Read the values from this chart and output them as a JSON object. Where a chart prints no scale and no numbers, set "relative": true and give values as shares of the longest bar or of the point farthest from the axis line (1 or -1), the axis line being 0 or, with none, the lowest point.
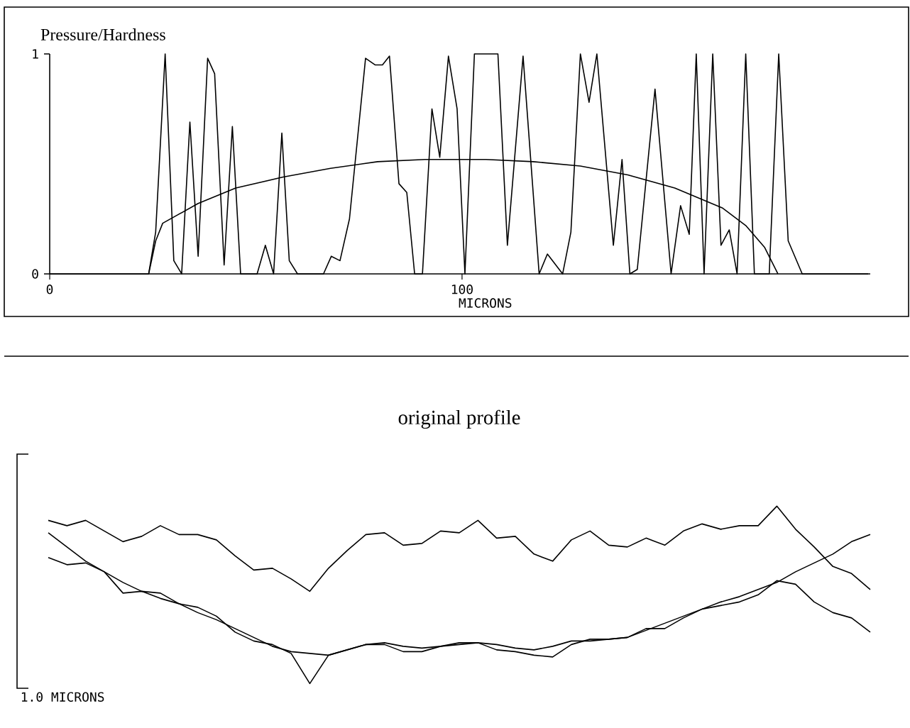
{
  "chart_data": [
    {
      "type": "line",
      "xlabel": "MICRONS",
      "ylabel": "Pressure/Hardness",
      "xlim": [
        0,
        199
      ],
      "xticks": [
        0,
        100
      ],
      "ylim": [
        0,
        1
      ],
      "yticks": [
        0,
        1
      ],
      "series": [
        {
          "color": "#000000",
          "x": [
            0,
            24.0,
            25.7,
            28.0,
            30.1,
            32.0,
            34.0,
            36.0,
            38.3,
            40.0,
            42.3,
            44.3,
            46.3,
            50.3,
            52.3,
            54.3,
            56.3,
            58.1,
            60.1,
            66.4,
            68.3,
            70.4,
            72.7,
            76.6,
            78.9,
            80.7,
            82.4,
            84.7,
            86.6,
            88.5,
            90.4,
            92.7,
            94.6,
            96.7,
            98.8,
            100.7,
            103.0,
            108.7,
            111.0,
            114.8,
            118.7,
            120.7,
            124.4,
            126.4,
            128.7,
            130.8,
            132.7,
            136.7,
            138.8,
            140.7,
            142.5,
            146.8,
            150.7,
            153.0,
            155.1,
            156.8,
            158.7,
            160.8,
            162.8,
            164.8,
            166.7,
            168.8,
            170.9,
            174.5,
            176.8,
            179.1,
            182.5,
            198.5
          ],
          "values": [
            0,
            0,
            0.19,
            1.0,
            0.06,
            0,
            0.69,
            0.08,
            0.98,
            0.91,
            0.04,
            0.67,
            0,
            0,
            0.13,
            0,
            0.64,
            0.06,
            0,
            0,
            0.08,
            0.06,
            0.25,
            0.98,
            0.95,
            0.95,
            0.99,
            0.41,
            0.37,
            0,
            0,
            0.75,
            0.53,
            0.99,
            0.75,
            0,
            1.0,
            1.0,
            0.13,
            0.99,
            0,
            0.09,
            0,
            0.19,
            1.0,
            0.78,
            1.0,
            0.13,
            0.52,
            0,
            0.02,
            0.84,
            0,
            0.31,
            0.18,
            1.0,
            0,
            1.0,
            0.13,
            0.2,
            0,
            1.0,
            0,
            0,
            1.0,
            0.15,
            0,
            0
          ]
        },
        {
          "color": "#000000",
          "x": [
            24.0,
            25.7,
            27.4,
            36.0,
            45.1,
            56.6,
            68.1,
            79.5,
            91.0,
            105.8,
            117.3,
            128.7,
            140.2,
            151.6,
            163.1,
            168.8,
            173.4,
            176.6
          ],
          "values": [
            0,
            0.15,
            0.23,
            0.32,
            0.39,
            0.44,
            0.48,
            0.51,
            0.52,
            0.52,
            0.51,
            0.49,
            0.45,
            0.39,
            0.3,
            0.22,
            0.12,
            0
          ]
        }
      ]
    },
    {
      "type": "line",
      "relative": true,
      "annotations": [
        "original profile",
        "1.0 MICRONS"
      ],
      "categories": [
        null,
        null,
        null,
        null,
        null,
        null,
        null,
        null,
        null,
        null,
        null,
        null,
        null,
        null,
        null,
        null,
        null,
        null,
        null,
        null,
        null,
        null,
        null,
        null,
        null,
        null,
        null,
        null,
        null,
        null,
        null,
        null,
        null,
        null,
        null,
        null,
        null,
        null,
        null,
        null,
        null,
        null,
        null,
        null,
        null
      ],
      "series": [
        {
          "color": "#000000",
          "values": [
            0.92,
            0.89,
            0.92,
            0.86,
            0.8,
            0.83,
            0.89,
            0.84,
            0.84,
            0.81,
            0.72,
            0.64,
            0.65,
            0.59,
            0.52,
            0.65,
            0.75,
            0.84,
            0.85,
            0.78,
            0.79,
            0.86,
            0.85,
            0.92,
            0.82,
            0.83,
            0.73,
            0.69,
            0.81,
            0.86,
            0.78,
            0.77,
            0.82,
            0.78,
            0.86,
            0.9,
            0.87,
            0.89,
            0.89,
            1.0,
            0.87,
            0.77,
            0.66,
            0.62,
            0.53
          ]
        },
        {
          "color": "#000000",
          "values": [
            0.71,
            0.67,
            0.68,
            0.63,
            0.51,
            0.52,
            0.51,
            0.45,
            0.43,
            0.38,
            0.29,
            0.24,
            0.22,
            0.17,
            0,
            0.16,
            0.19,
            0.22,
            0.22,
            0.18,
            0.18,
            0.21,
            0.23,
            0.23,
            0.19,
            0.18,
            0.16,
            0.15,
            0.22,
            0.25,
            0.25,
            0.26,
            0.31,
            0.31,
            0.37,
            0.42,
            0.44,
            0.46,
            0.5,
            0.58,
            0.56,
            0.46,
            0.4,
            0.37,
            0.29
          ]
        },
        {
          "color": "#000000",
          "values": [
            0.85,
            0.77,
            0.69,
            0.63,
            0.57,
            0.52,
            0.48,
            0.45,
            0.4,
            0.36,
            0.31,
            0.26,
            0.21,
            0.18,
            0.17,
            0.16,
            0.19,
            0.22,
            0.23,
            0.21,
            0.2,
            0.21,
            0.22,
            0.23,
            0.22,
            0.2,
            0.19,
            0.21,
            0.24,
            0.24,
            0.25,
            0.26,
            0.3,
            0.34,
            0.38,
            0.42,
            0.46,
            0.49,
            0.53,
            0.57,
            0.63,
            0.68,
            0.73,
            0.8,
            0.84
          ]
        }
      ]
    }
  ]
}
